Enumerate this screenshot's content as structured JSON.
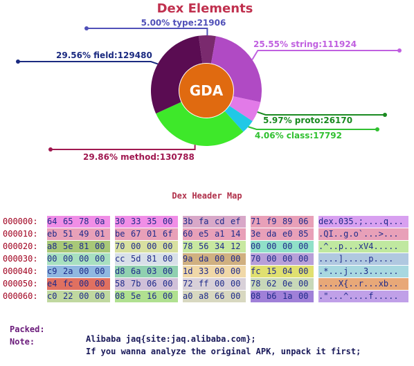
{
  "window": {
    "title": "Dex Elements"
  },
  "center_label": "GDA",
  "chart_data": {
    "type": "pie",
    "title": "Dex Elements",
    "slices": [
      {
        "name": "type",
        "count": 21906,
        "percent": 5.0,
        "label": "5.00% type:21906",
        "color": "#7a2a6e"
      },
      {
        "name": "string",
        "count": 111924,
        "percent": 25.55,
        "label": "25.55% string:111924",
        "color": "#b04ac4"
      },
      {
        "name": "proto",
        "count": 26170,
        "percent": 5.97,
        "label": "5.97% proto:26170",
        "color": "#e27ae8"
      },
      {
        "name": "class",
        "count": 17792,
        "percent": 4.06,
        "label": "4.06% class:17792",
        "color": "#20c8e6"
      },
      {
        "name": "method",
        "count": 130788,
        "percent": 29.86,
        "label": "29.86% method:130788",
        "color": "#3ee82a"
      },
      {
        "name": "field",
        "count": 129480,
        "percent": 29.56,
        "label": "29.56% field:129480",
        "color": "#5a0c52"
      }
    ],
    "label_colors": {
      "type": "#5050b8",
      "string": "#c060e0",
      "proto": "#1a8a20",
      "class": "#30c030",
      "method": "#a01850",
      "field": "#1a2a80"
    },
    "center_color": "#e06a10",
    "center_text_color": "#ffffff"
  },
  "header_map": {
    "title": "Dex Header Map",
    "rows": [
      {
        "offset": "000000:",
        "bytes": [
          "64",
          "65",
          "78",
          "0a",
          "30",
          "33",
          "35",
          "00",
          "3b",
          "fa",
          "cd",
          "ef",
          "71",
          "f9",
          "89",
          "06"
        ],
        "ascii": "dex.035.;....q..."
      },
      {
        "offset": "000010:",
        "bytes": [
          "eb",
          "51",
          "49",
          "01",
          "be",
          "67",
          "01",
          "6f",
          "60",
          "e5",
          "a1",
          "14",
          "3e",
          "da",
          "e0",
          "85"
        ],
        "ascii": ".QI..g.o`...>..."
      },
      {
        "offset": "000020:",
        "bytes": [
          "a8",
          "5e",
          "81",
          "00",
          "70",
          "00",
          "00",
          "00",
          "78",
          "56",
          "34",
          "12",
          "00",
          "00",
          "00",
          "00"
        ],
        "ascii": ".^..p...xV4....."
      },
      {
        "offset": "000030:",
        "bytes": [
          "00",
          "00",
          "00",
          "00",
          "cc",
          "5d",
          "81",
          "00",
          "9a",
          "da",
          "00",
          "00",
          "70",
          "00",
          "00",
          "00"
        ],
        "ascii": "....].....p...."
      },
      {
        "offset": "000040:",
        "bytes": [
          "c9",
          "2a",
          "00",
          "00",
          "d8",
          "6a",
          "03",
          "00",
          "1d",
          "33",
          "00",
          "00",
          "fc",
          "15",
          "04",
          "00"
        ],
        "ascii": ".*...j...3......"
      },
      {
        "offset": "000050:",
        "bytes": [
          "e4",
          "fc",
          "00",
          "00",
          "58",
          "7b",
          "06",
          "00",
          "72",
          "ff",
          "00",
          "00",
          "78",
          "62",
          "0e",
          "00"
        ],
        "ascii": "....X{..r...xb.."
      },
      {
        "offset": "000060:",
        "bytes": [
          "c0",
          "22",
          "00",
          "00",
          "08",
          "5e",
          "16",
          "00",
          "a0",
          "a8",
          "66",
          "00",
          "08",
          "b6",
          "1a",
          "00"
        ],
        "ascii": ".\"...^....f....."
      }
    ]
  },
  "notes": [
    {
      "label": "Packed:",
      "value": "Alibaba jaq{site:jaq.alibaba.com};"
    },
    {
      "label": "Note:",
      "value": "If you wanna analyze the original APK, unpack it first;"
    }
  ]
}
